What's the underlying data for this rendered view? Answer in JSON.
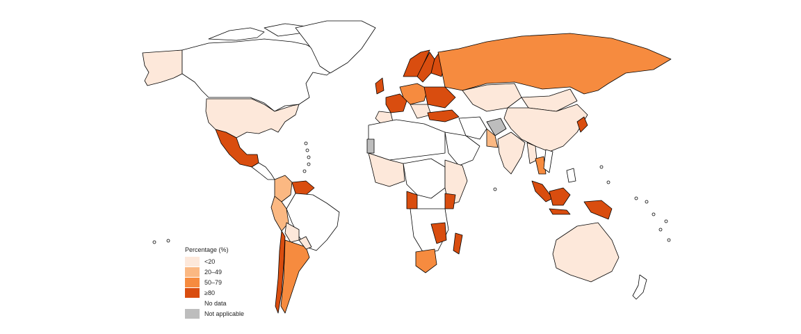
{
  "legend": {
    "title": "Percentage (%)",
    "items": [
      {
        "label": "<20",
        "color": "#fde8da"
      },
      {
        "label": "20–49",
        "color": "#fbb882"
      },
      {
        "label": "50–79",
        "color": "#f68b3f"
      },
      {
        "label": "≥80",
        "color": "#d94d0f"
      },
      {
        "label": "No data",
        "color": "#ffffff"
      },
      {
        "label": "Not applicable",
        "color": "#bdbdbd"
      }
    ]
  }
}
